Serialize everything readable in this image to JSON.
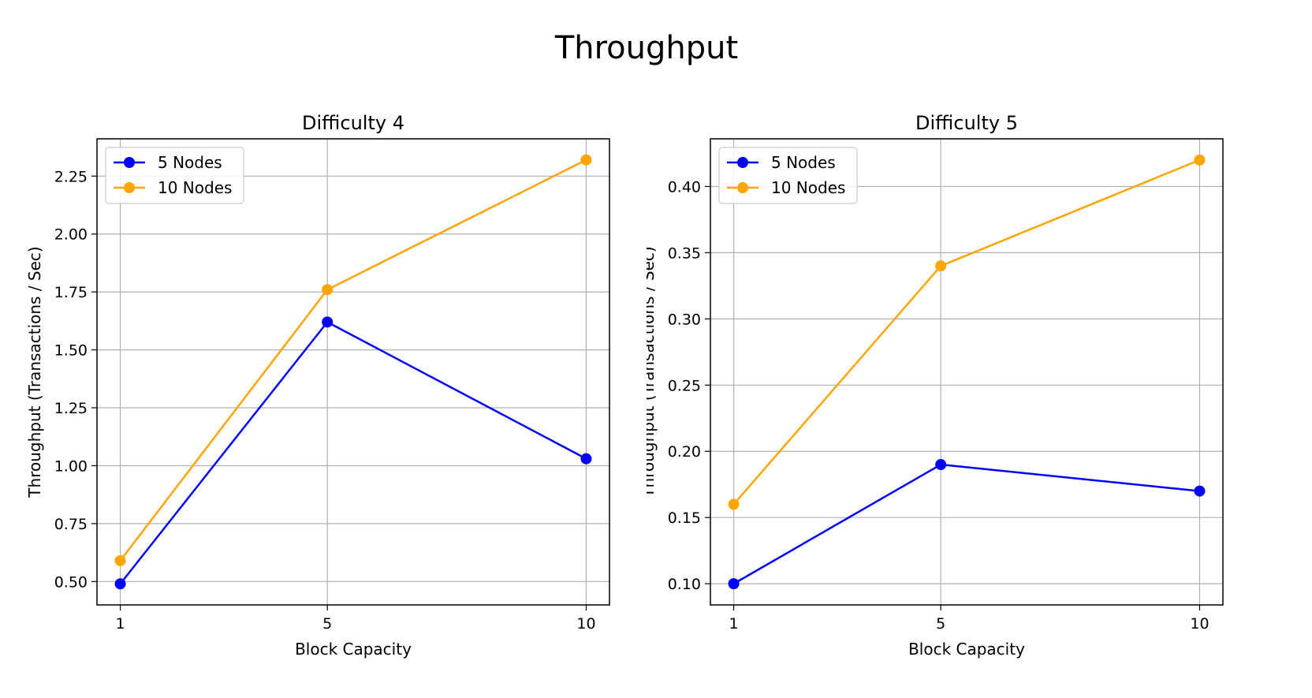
{
  "figure": {
    "title": "Throughput"
  },
  "chart_data": [
    {
      "type": "line",
      "title": "Difficulty 4",
      "xlabel": "Block Capacity",
      "ylabel": "Throughput (Transactions / Sec)",
      "x": [
        1,
        5,
        10
      ],
      "xticks": [
        1,
        5,
        10
      ],
      "yticks": [
        0.5,
        0.75,
        1.0,
        1.25,
        1.5,
        1.75,
        2.0,
        2.25
      ],
      "xlim": [
        0.55,
        10.45
      ],
      "ylim": [
        0.399,
        2.411
      ],
      "grid": true,
      "legend": "upper-left",
      "series": [
        {
          "name": "5 Nodes",
          "values": [
            0.49,
            1.62,
            1.03
          ],
          "color": "#0000ff"
        },
        {
          "name": "10 Nodes",
          "values": [
            0.59,
            1.76,
            2.32
          ],
          "color": "#ffa500"
        }
      ]
    },
    {
      "type": "line",
      "title": "Difficulty 5",
      "xlabel": "Block Capacity",
      "ylabel": "Throughput (Transactions / Sec)",
      "x": [
        1,
        5,
        10
      ],
      "xticks": [
        1,
        5,
        10
      ],
      "yticks": [
        0.1,
        0.15,
        0.2,
        0.25,
        0.3,
        0.35,
        0.4
      ],
      "xlim": [
        0.55,
        10.45
      ],
      "ylim": [
        0.084,
        0.436
      ],
      "grid": true,
      "legend": "upper-left",
      "series": [
        {
          "name": "5 Nodes",
          "values": [
            0.1,
            0.19,
            0.17
          ],
          "color": "#0000ff"
        },
        {
          "name": "10 Nodes",
          "values": [
            0.16,
            0.34,
            0.42
          ],
          "color": "#ffa500"
        }
      ]
    }
  ]
}
